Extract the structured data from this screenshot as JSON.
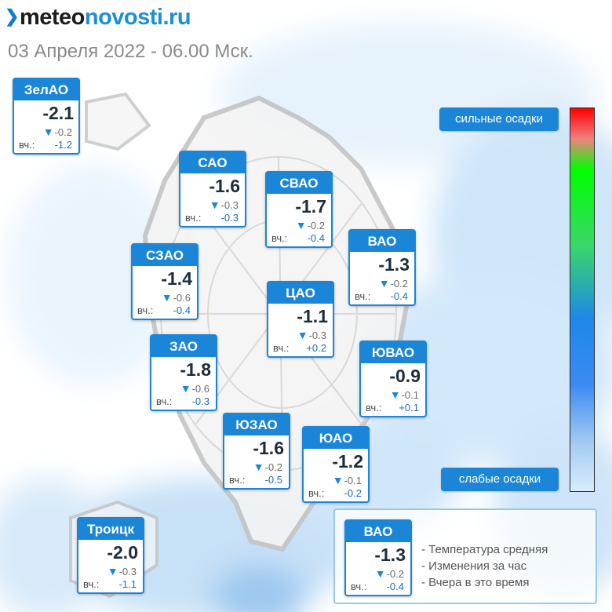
{
  "header": {
    "logo_part1": "meteo",
    "logo_part2": "novosti.ru",
    "date_line": "03 Апреля 2022 - 06.00 Мск."
  },
  "colors": {
    "card_blue": "#1b86d8",
    "rain_light": "#d9ecfb",
    "rain_heavy": "#ff0000"
  },
  "districts": [
    {
      "name": "ЗелАО",
      "temp": "-2.1",
      "change": "-0.2",
      "yesterday_label": "вч.:",
      "yesterday": "-1.2"
    },
    {
      "name": "САО",
      "temp": "-1.6",
      "change": "-0.3",
      "yesterday_label": "вч.:",
      "yesterday": "-0.3"
    },
    {
      "name": "СВАО",
      "temp": "-1.7",
      "change": "-0.2",
      "yesterday_label": "вч.:",
      "yesterday": "-0.4"
    },
    {
      "name": "ВАО",
      "temp": "-1.3",
      "change": "-0.2",
      "yesterday_label": "вч.:",
      "yesterday": "-0.4"
    },
    {
      "name": "СЗАО",
      "temp": "-1.4",
      "change": "-0.6",
      "yesterday_label": "вч.:",
      "yesterday": "-0.4"
    },
    {
      "name": "ЦАО",
      "temp": "-1.1",
      "change": "-0.3",
      "yesterday_label": "вч.:",
      "yesterday": "+0.2"
    },
    {
      "name": "ЗАО",
      "temp": "-1.8",
      "change": "-0.6",
      "yesterday_label": "вч.:",
      "yesterday": "-0.3"
    },
    {
      "name": "ЮВАО",
      "temp": "-0.9",
      "change": "-0.1",
      "yesterday_label": "вч.:",
      "yesterday": "+0.1"
    },
    {
      "name": "ЮЗАО",
      "temp": "-1.6",
      "change": "-0.2",
      "yesterday_label": "вч.:",
      "yesterday": "-0.5"
    },
    {
      "name": "ЮАО",
      "temp": "-1.2",
      "change": "-0.1",
      "yesterday_label": "вч.:",
      "yesterday": "-0.2"
    },
    {
      "name": "Троицк",
      "temp": "-2.0",
      "change": "-0.3",
      "yesterday_label": "вч.:",
      "yesterday": "-1.1"
    }
  ],
  "precip_scale": {
    "heavy_label": "сильные осадки",
    "light_label": "слабые осадки"
  },
  "legend": {
    "sample": {
      "name": "ВАО",
      "temp": "-1.3",
      "change": "-0.2",
      "yesterday_label": "вч.:",
      "yesterday": "-0.4"
    },
    "line1": "- Температура средняя",
    "line2": "- Изменения за час",
    "line3": "- Вчера в это время"
  }
}
